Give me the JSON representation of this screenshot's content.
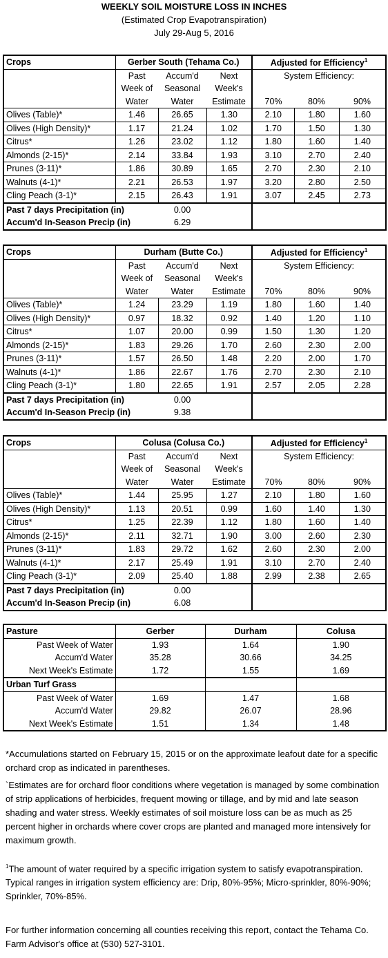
{
  "header": {
    "title": "WEEKLY SOIL MOISTURE LOSS IN INCHES",
    "subtitle": "(Estimated Crop Evapotranspiration)",
    "date": "July 29-Aug 5, 2016"
  },
  "regions": [
    {
      "crops_label": "Crops",
      "location": "Gerber South (Tehama Co.)",
      "adjusted_label": "Adjusted for Efficiency",
      "adjusted_footnote": "1",
      "column_heads": [
        [
          "Past",
          "Week of",
          "Water"
        ],
        [
          "Accum'd",
          "Seasonal",
          "Water"
        ],
        [
          "Next",
          "Week's",
          "Estimate"
        ]
      ],
      "system_efficiency": "System Efficiency:",
      "efficiencies": [
        "70%",
        "80%",
        "90%"
      ],
      "rows": [
        [
          "Olives (Table)*",
          "1.46",
          "26.65",
          "1.30",
          "2.10",
          "1.80",
          "1.60"
        ],
        [
          "Olives (High Density)*",
          "1.17",
          "21.24",
          "1.02",
          "1.70",
          "1.50",
          "1.30"
        ],
        [
          "Citrus*",
          "1.26",
          "23.02",
          "1.12",
          "1.80",
          "1.60",
          "1.40"
        ],
        [
          "Almonds (2-15)*",
          "2.14",
          "33.84",
          "1.93",
          "3.10",
          "2.70",
          "2.40"
        ],
        [
          "Prunes (3-11)*",
          "1.86",
          "30.89",
          "1.65",
          "2.70",
          "2.30",
          "2.10"
        ],
        [
          "Walnuts (4-1)*",
          "2.21",
          "26.53",
          "1.97",
          "3.20",
          "2.80",
          "2.50"
        ],
        [
          "Cling Peach (3-1)*",
          "2.15",
          "26.43",
          "1.91",
          "3.07",
          "2.45",
          "2.73"
        ]
      ],
      "precip": [
        [
          "Past 7 days Precipitation (in)",
          "0.00"
        ],
        [
          "Accum'd In-Season Precip (in)",
          "6.29"
        ]
      ]
    },
    {
      "crops_label": "Crops",
      "location": "Durham (Butte Co.)",
      "adjusted_label": "Adjusted for Efficiency",
      "adjusted_footnote": "1",
      "column_heads": [
        [
          "Past",
          "Week of",
          "Water"
        ],
        [
          "Accum'd",
          "Seasonal",
          "Water"
        ],
        [
          "Next",
          "Week's",
          "Estimate"
        ]
      ],
      "system_efficiency": "System Efficiency:",
      "efficiencies": [
        "70%",
        "80%",
        "90%"
      ],
      "rows": [
        [
          "Olives (Table)*",
          "1.24",
          "23.29",
          "1.19",
          "1.80",
          "1.60",
          "1.40"
        ],
        [
          "Olives (High Density)*",
          "0.97",
          "18.32",
          "0.92",
          "1.40",
          "1.20",
          "1.10"
        ],
        [
          "Citrus*",
          "1.07",
          "20.00",
          "0.99",
          "1.50",
          "1.30",
          "1.20"
        ],
        [
          "Almonds (2-15)*",
          "1.83",
          "29.26",
          "1.70",
          "2.60",
          "2.30",
          "2.00"
        ],
        [
          "Prunes (3-11)*",
          "1.57",
          "26.50",
          "1.48",
          "2.20",
          "2.00",
          "1.70"
        ],
        [
          "Walnuts (4-1)*",
          "1.86",
          "22.67",
          "1.76",
          "2.70",
          "2.30",
          "2.10"
        ],
        [
          "Cling Peach (3-1)*",
          "1.80",
          "22.65",
          "1.91",
          "2.57",
          "2.05",
          "2.28"
        ]
      ],
      "precip": [
        [
          "Past 7 days Precipitation (in)",
          "0.00"
        ],
        [
          "Accum'd In-Season Precip (in)",
          "9.38"
        ]
      ]
    },
    {
      "crops_label": "Crops",
      "location": "Colusa (Colusa Co.)",
      "adjusted_label": "Adjusted for Efficiency",
      "adjusted_footnote": "1",
      "column_heads": [
        [
          "Past",
          "Week of",
          "Water"
        ],
        [
          "Accum'd",
          "Seasonal",
          "Water"
        ],
        [
          "Next",
          "Week's",
          "Estimate"
        ]
      ],
      "system_efficiency": "System Efficiency:",
      "efficiencies": [
        "70%",
        "80%",
        "90%"
      ],
      "rows": [
        [
          "Olives (Table)*",
          "1.44",
          "25.95",
          "1.27",
          "2.10",
          "1.80",
          "1.60"
        ],
        [
          "Olives (High Density)*",
          "1.13",
          "20.51",
          "0.99",
          "1.60",
          "1.40",
          "1.30"
        ],
        [
          "Citrus*",
          "1.25",
          "22.39",
          "1.12",
          "1.80",
          "1.60",
          "1.40"
        ],
        [
          "Almonds (2-15)*",
          "2.11",
          "32.71",
          "1.90",
          "3.00",
          "2.60",
          "2.30"
        ],
        [
          "Prunes (3-11)*",
          "1.83",
          "29.72",
          "1.62",
          "2.60",
          "2.30",
          "2.00"
        ],
        [
          "Walnuts (4-1)*",
          "2.17",
          "25.49",
          "1.91",
          "3.10",
          "2.70",
          "2.40"
        ],
        [
          "Cling Peach (3-1)*",
          "2.09",
          "25.40",
          "1.88",
          "2.99",
          "2.38",
          "2.65"
        ]
      ],
      "precip": [
        [
          "Past 7 days Precipitation (in)",
          "0.00"
        ],
        [
          "Accum'd In-Season Precip (in)",
          "6.08"
        ]
      ]
    }
  ],
  "pasture": {
    "columns": [
      "Pasture",
      "Gerber",
      "Durham",
      "Colusa"
    ],
    "rows": [
      [
        "Past Week of Water",
        "1.93",
        "1.64",
        "1.90"
      ],
      [
        "Accum'd Water",
        "35.28",
        "30.66",
        "34.25"
      ],
      [
        "Next Week's Estimate",
        "1.72",
        "1.55",
        "1.69"
      ]
    ],
    "urban_label": "Urban Turf Grass",
    "urban_rows": [
      [
        "Past Week of Water",
        "1.69",
        "1.47",
        "1.68"
      ],
      [
        "Accum'd Water",
        "29.82",
        "26.07",
        "28.96"
      ],
      [
        "Next Week's Estimate",
        "1.51",
        "1.34",
        "1.48"
      ]
    ]
  },
  "notes": {
    "accumulations": "*Accumulations started on February 15, 2015 or on the approximate leafout date for a specific orchard crop as indicated in parentheses.",
    "estimates": "`Estimates are for orchard floor conditions where vegetation is managed by some combination of strip applications of herbicides, frequent mowing or tillage, and by mid and late season shading and water stress.  Weekly estimates of soil moisture loss can be as much as 25 percent higher in orchards where cover crops are planted and managed more intensively for maximum growth.",
    "efficiency_mark": "1",
    "efficiency": "The amount of water required by a specific irrigation system to satisfy evapotranspiration. Typical ranges in irrigation system efficiency are: Drip, 80%-95%; Micro-sprinkler, 80%-90%; Sprinkler, 70%-85%.",
    "contact": "For further information concerning all counties receiving this report, contact the Tehama Co. Farm Advisor's office at (530) 527-3101."
  }
}
